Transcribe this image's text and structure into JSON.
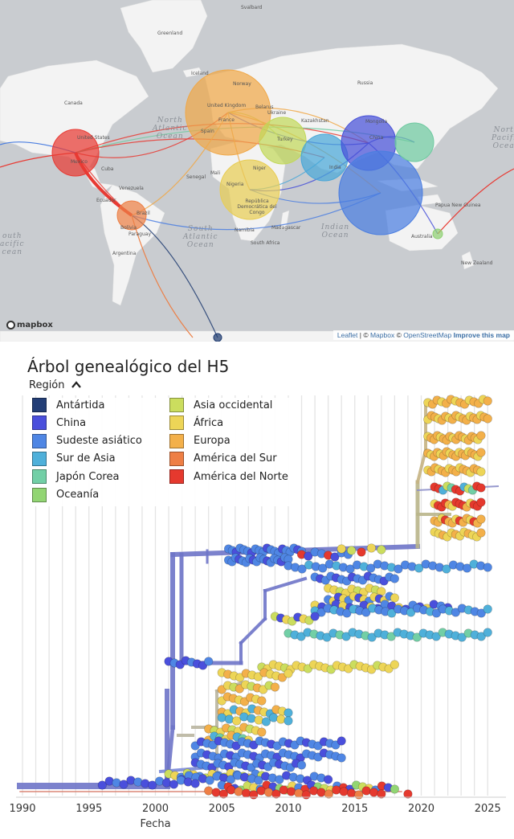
{
  "map": {
    "attribution": {
      "leaflet": "Leaflet",
      "mapbox": "Mapbox",
      "osm": "OpenStreetMap",
      "improve": "Improve this map"
    },
    "logo": "mapbox",
    "places": [
      {
        "text": "Svalbard"
      },
      {
        "text": "Greenland"
      },
      {
        "text": "Iceland"
      },
      {
        "text": "Canada"
      },
      {
        "text": "Russia"
      },
      {
        "text": "Kazakhstan"
      },
      {
        "text": "Mongolia"
      },
      {
        "text": "United States"
      },
      {
        "text": "Mexico"
      },
      {
        "text": "Cuba"
      },
      {
        "text": "Venezuela"
      },
      {
        "text": "Ecuador"
      },
      {
        "text": "Brazil"
      },
      {
        "text": "Bolivia"
      },
      {
        "text": "Paraguay"
      },
      {
        "text": "Argentina"
      },
      {
        "text": "Senegal"
      },
      {
        "text": "Mali"
      },
      {
        "text": "Niger"
      },
      {
        "text": "Nigeria"
      },
      {
        "text": "República Democrática del Congo"
      },
      {
        "text": "Namibia"
      },
      {
        "text": "South Africa"
      },
      {
        "text": "Madagascar"
      },
      {
        "text": "Papua New Guinea"
      },
      {
        "text": "Australia"
      },
      {
        "text": "New Zealand"
      },
      {
        "text": "Norway"
      },
      {
        "text": "United Kingdom"
      },
      {
        "text": "France"
      },
      {
        "text": "Spain"
      },
      {
        "text": "Belarus"
      },
      {
        "text": "Ukraine"
      },
      {
        "text": "Turkey"
      },
      {
        "text": "China"
      },
      {
        "text": "India"
      }
    ],
    "oceans": [
      {
        "text": "North\nAtlantic\nOcean"
      },
      {
        "text": "South\nAtlantic\nOcean"
      },
      {
        "text": "Indian\nOcean"
      },
      {
        "text": "North\nPacific\nOcean"
      },
      {
        "text": "outh\nacific\ncean"
      }
    ],
    "circles": [
      {
        "region": "europa",
        "color": "#f0a848",
        "size": "large"
      },
      {
        "region": "america-norte",
        "color": "#e83a33",
        "size": "medium"
      },
      {
        "region": "america-sur",
        "color": "#ec7f45",
        "size": "small"
      },
      {
        "region": "africa",
        "color": "#e8cd55",
        "size": "medium"
      },
      {
        "region": "asia-occidental",
        "color": "#c2d85a",
        "size": "medium"
      },
      {
        "region": "sur-asia",
        "color": "#4aa7d8",
        "size": "medium"
      },
      {
        "region": "china",
        "color": "#4650d8",
        "size": "medium"
      },
      {
        "region": "sudeste-asiatico",
        "color": "#4b7ee0",
        "size": "large"
      },
      {
        "region": "japon-corea",
        "color": "#6ec9a0",
        "size": "small"
      },
      {
        "region": "oceania",
        "color": "#8fd072",
        "size": "tiny"
      },
      {
        "region": "antartida",
        "color": "#1f3b70",
        "size": "tiny"
      }
    ]
  },
  "tree": {
    "title": "Árbol genealógico del H5",
    "region_toggle": "Región",
    "xlabel": "Fecha",
    "ticks": [
      "1990",
      "1995",
      "2000",
      "2005",
      "2010",
      "2015",
      "2020",
      "2025"
    ],
    "legend": [
      {
        "label": "Antártida",
        "color": "#233e76"
      },
      {
        "label": "China",
        "color": "#4a4fdc"
      },
      {
        "label": "Sudeste asiático",
        "color": "#4f86e4"
      },
      {
        "label": "Sur de Asia",
        "color": "#4fb0da"
      },
      {
        "label": "Japón Corea",
        "color": "#72cfa6"
      },
      {
        "label": "Oceanía",
        "color": "#92d573"
      },
      {
        "label": "Asia occidental",
        "color": "#cbdd5e"
      },
      {
        "label": "África",
        "color": "#edd557"
      },
      {
        "label": "Europa",
        "color": "#f3b04a"
      },
      {
        "label": "América del Sur",
        "color": "#ee7f45"
      },
      {
        "label": "América del Norte",
        "color": "#e5392e"
      }
    ]
  }
}
